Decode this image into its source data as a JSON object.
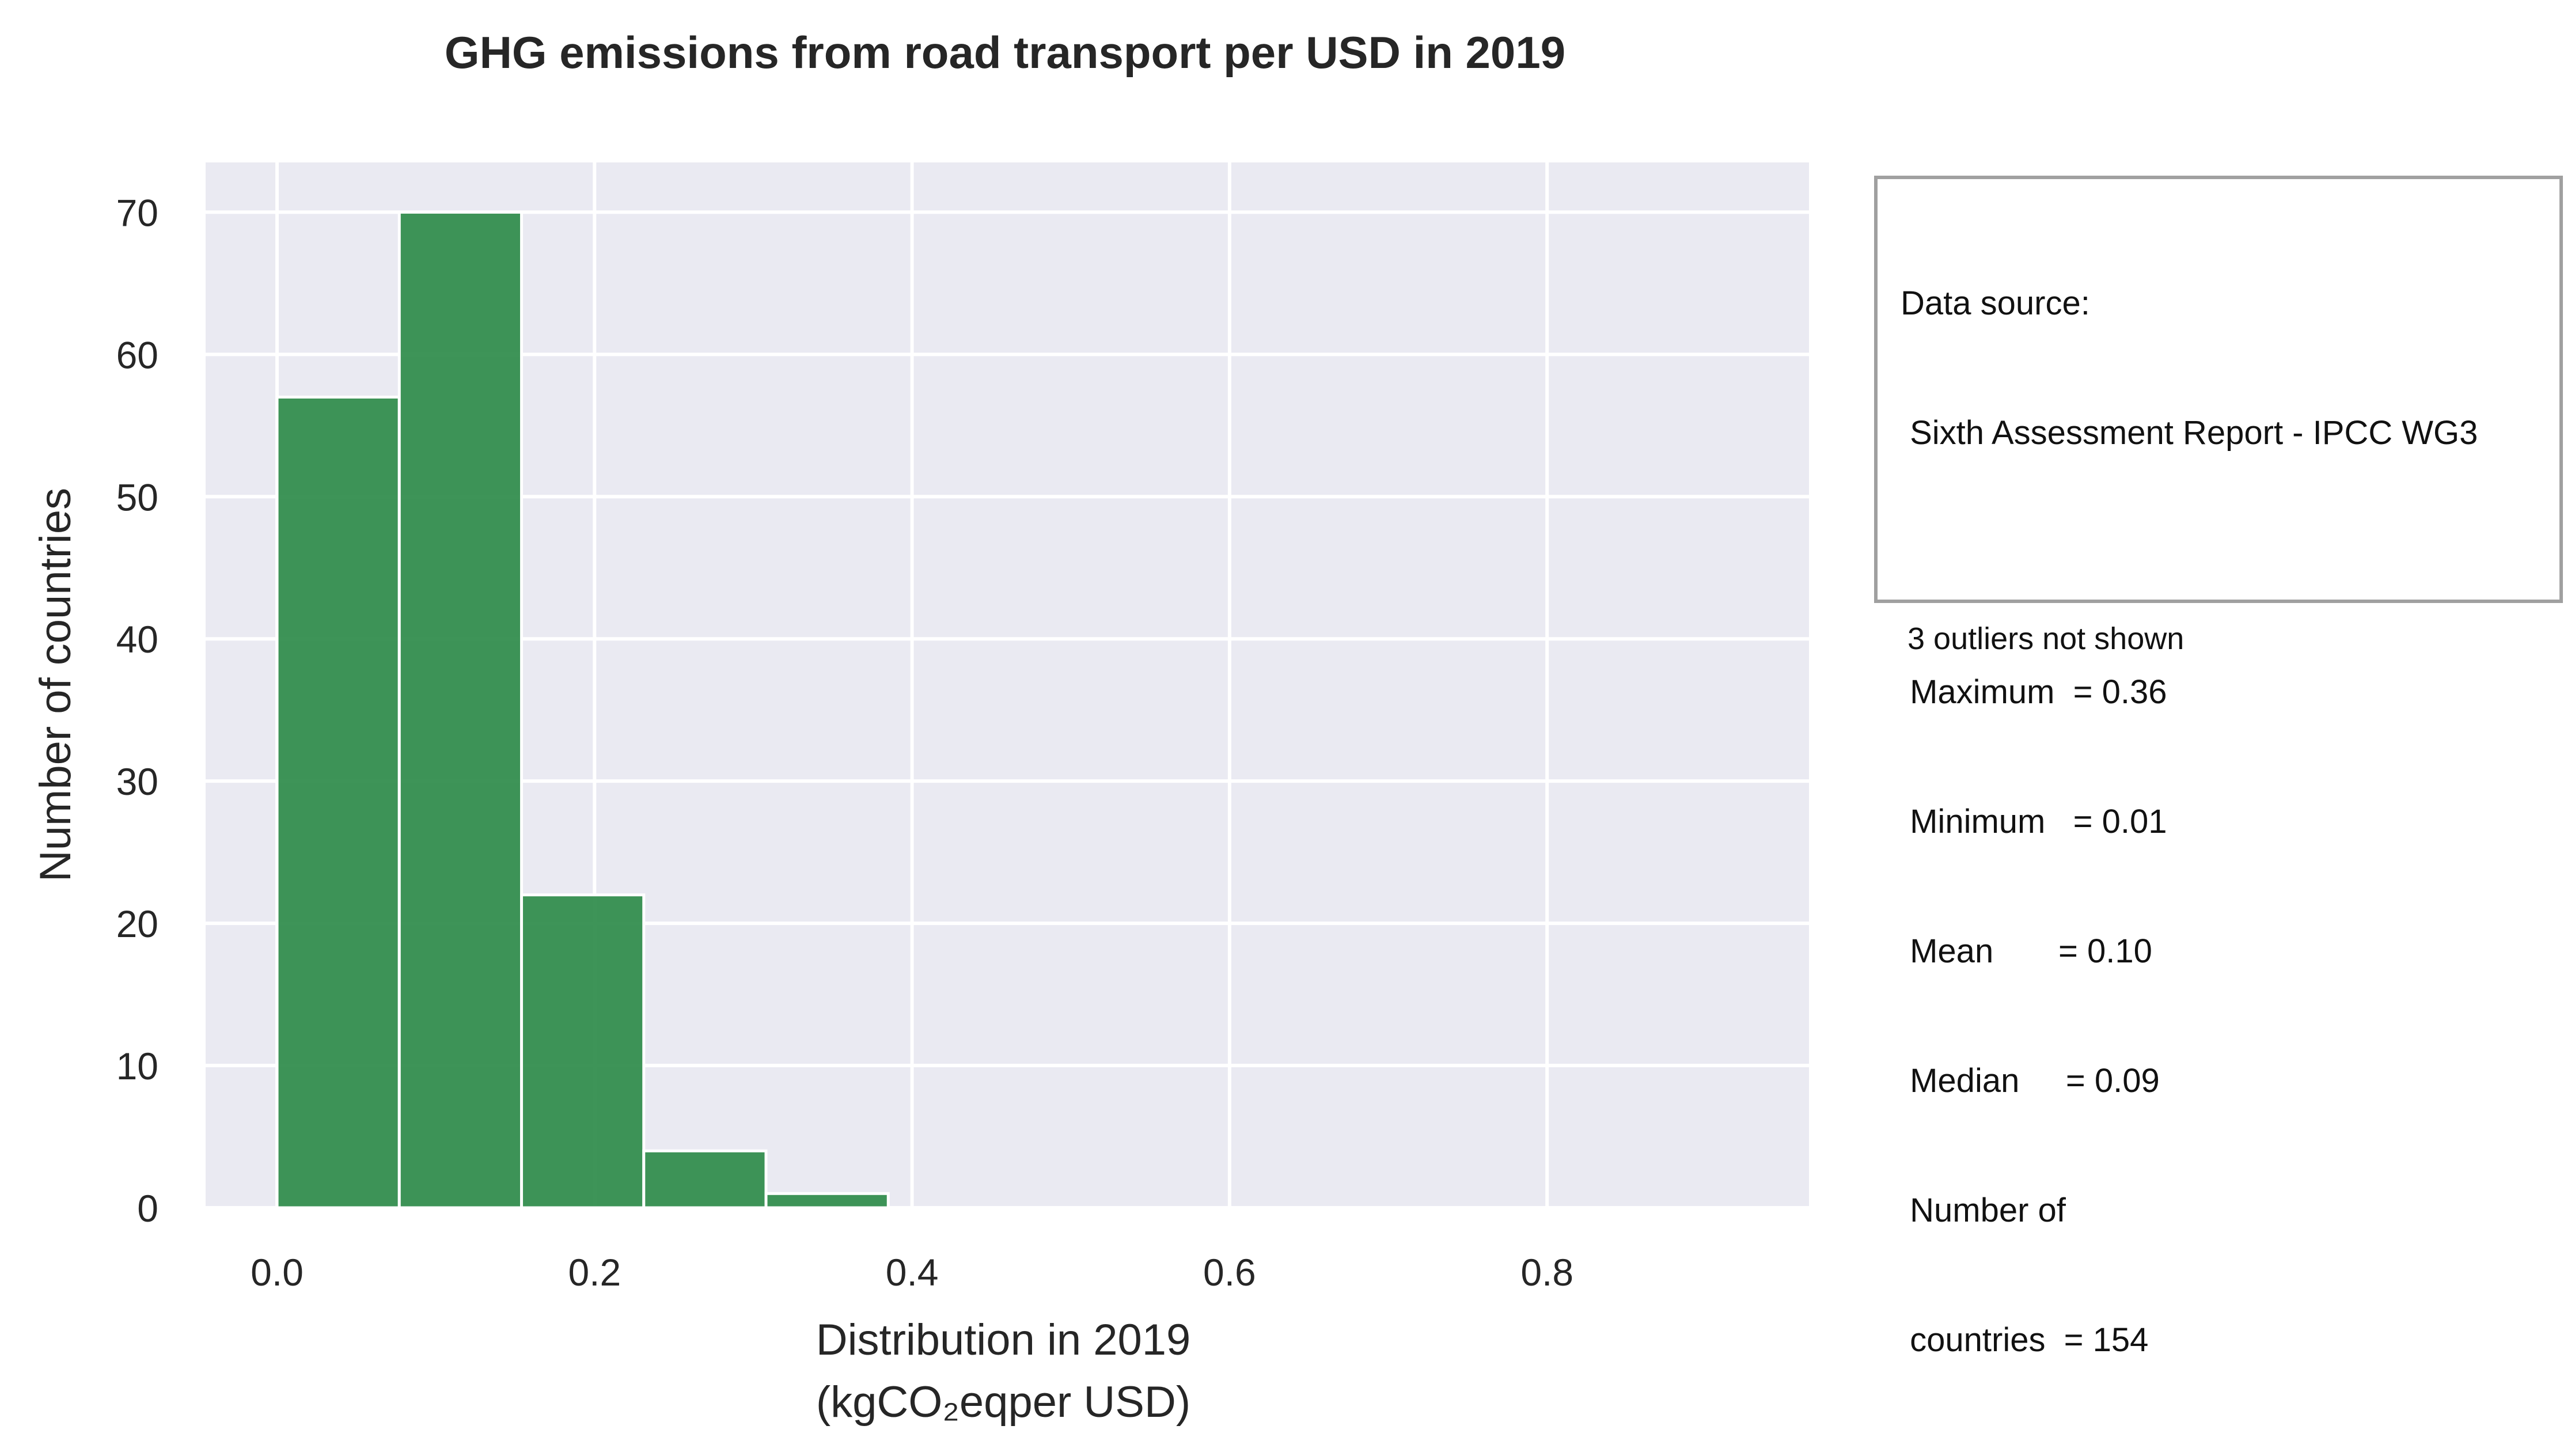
{
  "chart_data": {
    "type": "bar",
    "title": "GHG emissions from road transport per USD in 2019",
    "xlabel_line1": "Distribution in 2019",
    "xlabel_line2": "(kgCO₂eqper USD)",
    "ylabel": "Number of countries",
    "bins": [
      {
        "x0": 0.0,
        "x1": 0.077,
        "count": 57
      },
      {
        "x0": 0.077,
        "x1": 0.154,
        "count": 70
      },
      {
        "x0": 0.154,
        "x1": 0.231,
        "count": 22
      },
      {
        "x0": 0.231,
        "x1": 0.308,
        "count": 4
      },
      {
        "x0": 0.308,
        "x1": 0.385,
        "count": 1
      }
    ],
    "xlim": [
      -0.045,
      0.965
    ],
    "ylim": [
      0,
      73.5
    ],
    "xticks": [
      0.0,
      0.2,
      0.4,
      0.6,
      0.8
    ],
    "xtick_labels": [
      "0.0",
      "0.2",
      "0.4",
      "0.6",
      "0.8"
    ],
    "yticks": [
      0,
      10,
      20,
      30,
      40,
      50,
      60,
      70
    ],
    "ytick_labels": [
      "0",
      "10",
      "20",
      "30",
      "40",
      "50",
      "60",
      "70"
    ],
    "grid": true,
    "colors": {
      "bar": "#2e8b4a",
      "plot_background": "#eaeaf2",
      "grid": "#ffffff"
    }
  },
  "info_box": {
    "lines": [
      "Data source:",
      " Sixth Assessment Report - IPCC WG3",
      "",
      " Maximum  = 0.36",
      " Minimum   = 0.01",
      " Mean       = 0.10",
      " Median     = 0.09",
      " Number of",
      " countries  = 154"
    ]
  },
  "note": "3 outliers not shown"
}
